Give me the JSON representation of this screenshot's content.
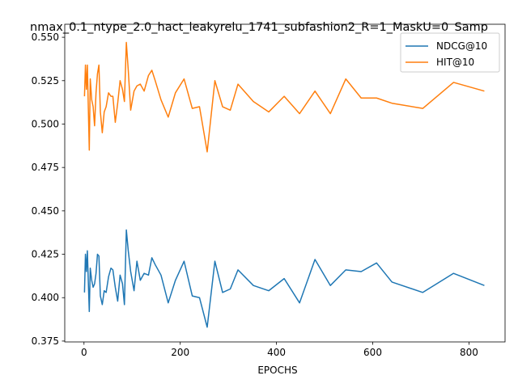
{
  "chart_data": {
    "type": "line",
    "title": "nmax_0.1_ntype_2.0_hact_leakyrelu_1741_subfashion2_R=1_MaskU=0_Samp",
    "xlabel": "EPOCHS",
    "ylabel": "",
    "xlim": [
      -40,
      875
    ],
    "ylim": [
      0.3745,
      0.5575
    ],
    "xticks": [
      0,
      200,
      400,
      600,
      800
    ],
    "yticks": [
      0.375,
      0.4,
      0.425,
      0.45,
      0.475,
      0.5,
      0.525,
      0.55
    ],
    "ytick_labels": [
      "0.375",
      "0.400",
      "0.425",
      "0.450",
      "0.475",
      "0.500",
      "0.525",
      "0.550"
    ],
    "grid": false,
    "legend_position": "top-right",
    "series": [
      {
        "name": "NDCG@10",
        "color": "#1f77b4",
        "x": [
          1,
          3,
          5,
          7,
          9,
          11,
          13,
          16,
          19,
          22,
          25,
          28,
          31,
          34,
          38,
          42,
          46,
          51,
          56,
          60,
          65,
          70,
          75,
          80,
          84,
          88,
          92,
          97,
          104,
          110,
          117,
          125,
          134,
          141,
          148,
          160,
          175,
          190,
          208,
          225,
          240,
          256,
          272,
          288,
          304,
          320,
          352,
          384,
          416,
          448,
          480,
          512,
          544,
          576,
          608,
          640,
          704,
          768,
          832
        ],
        "y": [
          0.403,
          0.425,
          0.415,
          0.427,
          0.409,
          0.392,
          0.417,
          0.41,
          0.406,
          0.408,
          0.414,
          0.425,
          0.424,
          0.401,
          0.396,
          0.404,
          0.403,
          0.412,
          0.417,
          0.416,
          0.406,
          0.398,
          0.413,
          0.408,
          0.396,
          0.439,
          0.427,
          0.415,
          0.404,
          0.421,
          0.41,
          0.414,
          0.413,
          0.423,
          0.419,
          0.413,
          0.397,
          0.41,
          0.421,
          0.401,
          0.4,
          0.383,
          0.421,
          0.403,
          0.405,
          0.416,
          0.407,
          0.404,
          0.411,
          0.397,
          0.422,
          0.407,
          0.416,
          0.415,
          0.42,
          0.409,
          0.403,
          0.414,
          0.407
        ]
      },
      {
        "name": "HIT@10",
        "color": "#ff7f0e",
        "x": [
          1,
          3,
          5,
          7,
          9,
          11,
          13,
          16,
          19,
          22,
          25,
          28,
          31,
          34,
          38,
          42,
          46,
          51,
          56,
          60,
          65,
          70,
          75,
          80,
          84,
          88,
          92,
          97,
          104,
          110,
          117,
          125,
          134,
          141,
          148,
          160,
          175,
          190,
          208,
          225,
          240,
          256,
          272,
          288,
          304,
          320,
          352,
          384,
          416,
          448,
          480,
          512,
          544,
          576,
          608,
          640,
          704,
          768,
          832
        ],
        "y": [
          0.516,
          0.534,
          0.52,
          0.534,
          0.509,
          0.485,
          0.526,
          0.514,
          0.51,
          0.499,
          0.518,
          0.529,
          0.534,
          0.507,
          0.495,
          0.507,
          0.51,
          0.518,
          0.516,
          0.516,
          0.501,
          0.512,
          0.525,
          0.52,
          0.513,
          0.547,
          0.531,
          0.508,
          0.519,
          0.522,
          0.523,
          0.519,
          0.528,
          0.531,
          0.525,
          0.514,
          0.504,
          0.518,
          0.526,
          0.509,
          0.51,
          0.484,
          0.525,
          0.51,
          0.508,
          0.523,
          0.513,
          0.507,
          0.516,
          0.506,
          0.519,
          0.506,
          0.526,
          0.515,
          0.515,
          0.512,
          0.509,
          0.524,
          0.519
        ]
      }
    ]
  }
}
